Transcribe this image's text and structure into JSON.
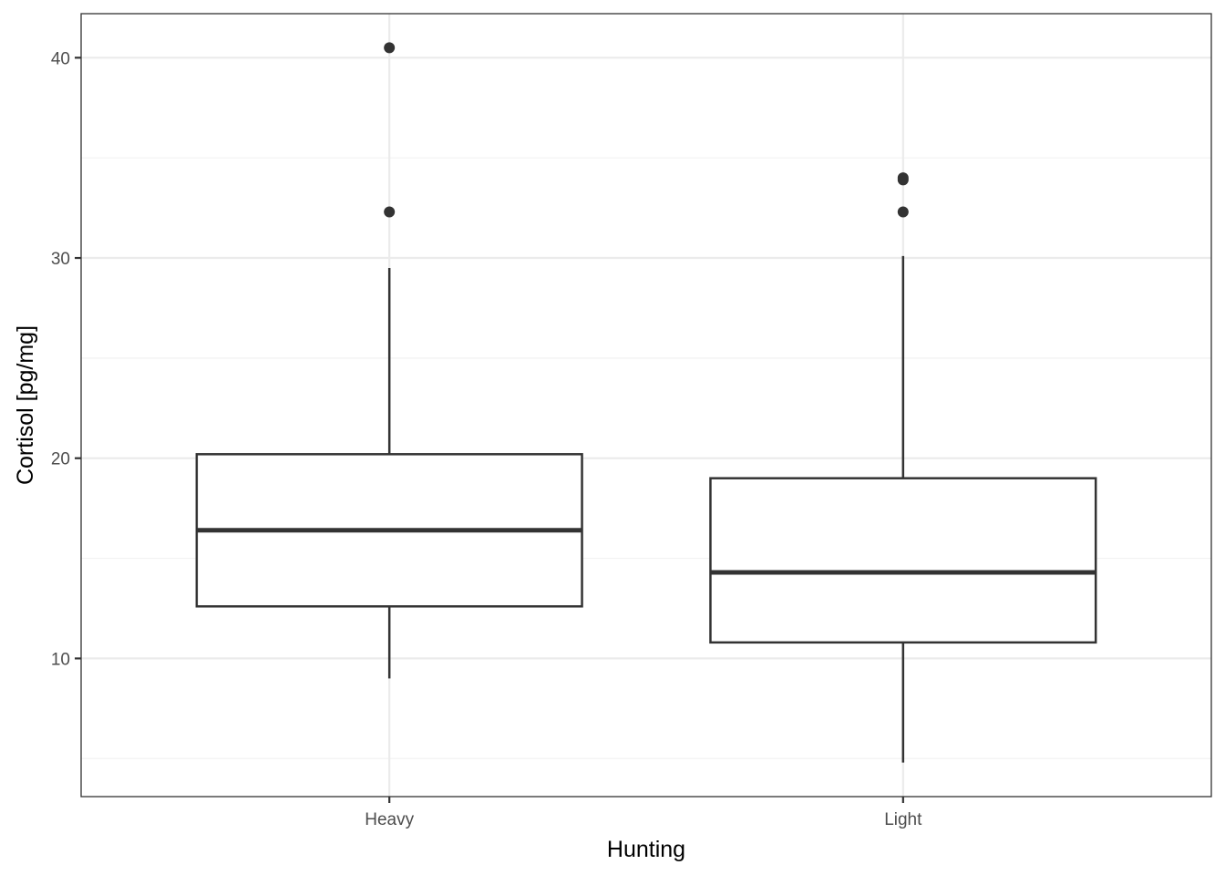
{
  "chart_data": {
    "type": "boxplot",
    "title": "",
    "xlabel": "Hunting",
    "ylabel": "Cortisol [pg/mg]",
    "categories": [
      "Heavy",
      "Light"
    ],
    "ylim": [
      3.1,
      42.2
    ],
    "yticks": [
      10,
      20,
      30,
      40
    ],
    "yticks_minor": [
      5,
      15,
      25,
      35
    ],
    "grid": true,
    "legend": null,
    "boxes": [
      {
        "category": "Heavy",
        "whisker_low": 9.0,
        "q1": 12.6,
        "median": 16.4,
        "q3": 20.2,
        "whisker_high": 29.5,
        "outliers": [
          32.3,
          40.5
        ]
      },
      {
        "category": "Light",
        "whisker_low": 4.8,
        "q1": 10.8,
        "median": 14.3,
        "q3": 19.0,
        "whisker_high": 30.1,
        "outliers": [
          32.3,
          33.9,
          34.0
        ]
      }
    ]
  },
  "style": {
    "panel_border": "#333333",
    "grid_major": "#ebebeb",
    "grid_minor": "#f2f2f2",
    "box_stroke": "#333333",
    "outlier_fill": "#333333",
    "tick_text": "#4d4d4d"
  }
}
